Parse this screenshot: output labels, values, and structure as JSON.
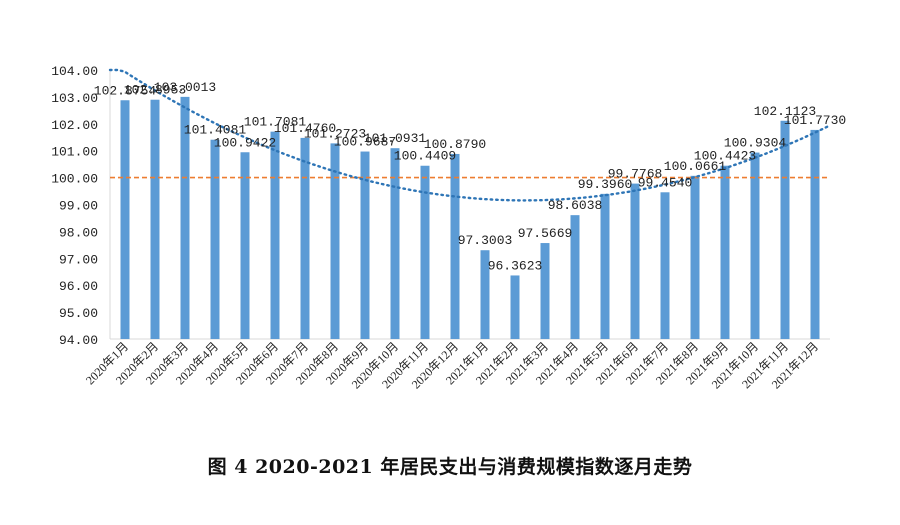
{
  "chart_data": {
    "type": "bar",
    "categories": [
      "2020年1月",
      "2020年2月",
      "2020年3月",
      "2020年4月",
      "2020年5月",
      "2020年6月",
      "2020年7月",
      "2020年8月",
      "2020年9月",
      "2020年10月",
      "2020年11月",
      "2020年12月",
      "2021年1月",
      "2021年2月",
      "2021年3月",
      "2021年4月",
      "2021年5月",
      "2021年6月",
      "2021年7月",
      "2021年8月",
      "2021年9月",
      "2021年10月",
      "2021年11月",
      "2021年12月"
    ],
    "values": [
      102.8754,
      102.8953,
      103.0013,
      101.4081,
      100.9422,
      101.7081,
      101.476,
      101.2723,
      100.9687,
      101.0931,
      100.4409,
      100.879,
      97.3003,
      96.3623,
      97.5669,
      98.6038,
      99.396,
      99.7768,
      99.454,
      100.0661,
      100.4423,
      100.9304,
      102.1123,
      101.773
    ],
    "value_labels": [
      "102.8754",
      "102.8953",
      "103.0013",
      "101.4081",
      "100.9422",
      "101.7081",
      "101.4760",
      "101.2723",
      "100.9687",
      "101.0931",
      "100.4409",
      "100.8790",
      "97.3003",
      "96.3623",
      "97.5669",
      "98.6038",
      "99.3960",
      "99.7768",
      "99.4540",
      "100.0661",
      "100.4423",
      "100.9304",
      "102.1123",
      "101.7730"
    ],
    "ylim": [
      94,
      104
    ],
    "yticks": [
      "94.00",
      "95.00",
      "96.00",
      "97.00",
      "98.00",
      "99.00",
      "100.00",
      "101.00",
      "102.00",
      "103.00",
      "104.00"
    ],
    "reference_line": 100,
    "trendline": "polynomial (dotted)",
    "title": "图 4    2020-2021 年居民支出与消费规模指数逐月走势",
    "xlabel": "",
    "ylabel": "",
    "grid": false,
    "colors": {
      "bar": "#5b9bd5",
      "trend": "#2e75b6",
      "reference": "#ed7d31",
      "axis": "#d9d9d9"
    }
  }
}
